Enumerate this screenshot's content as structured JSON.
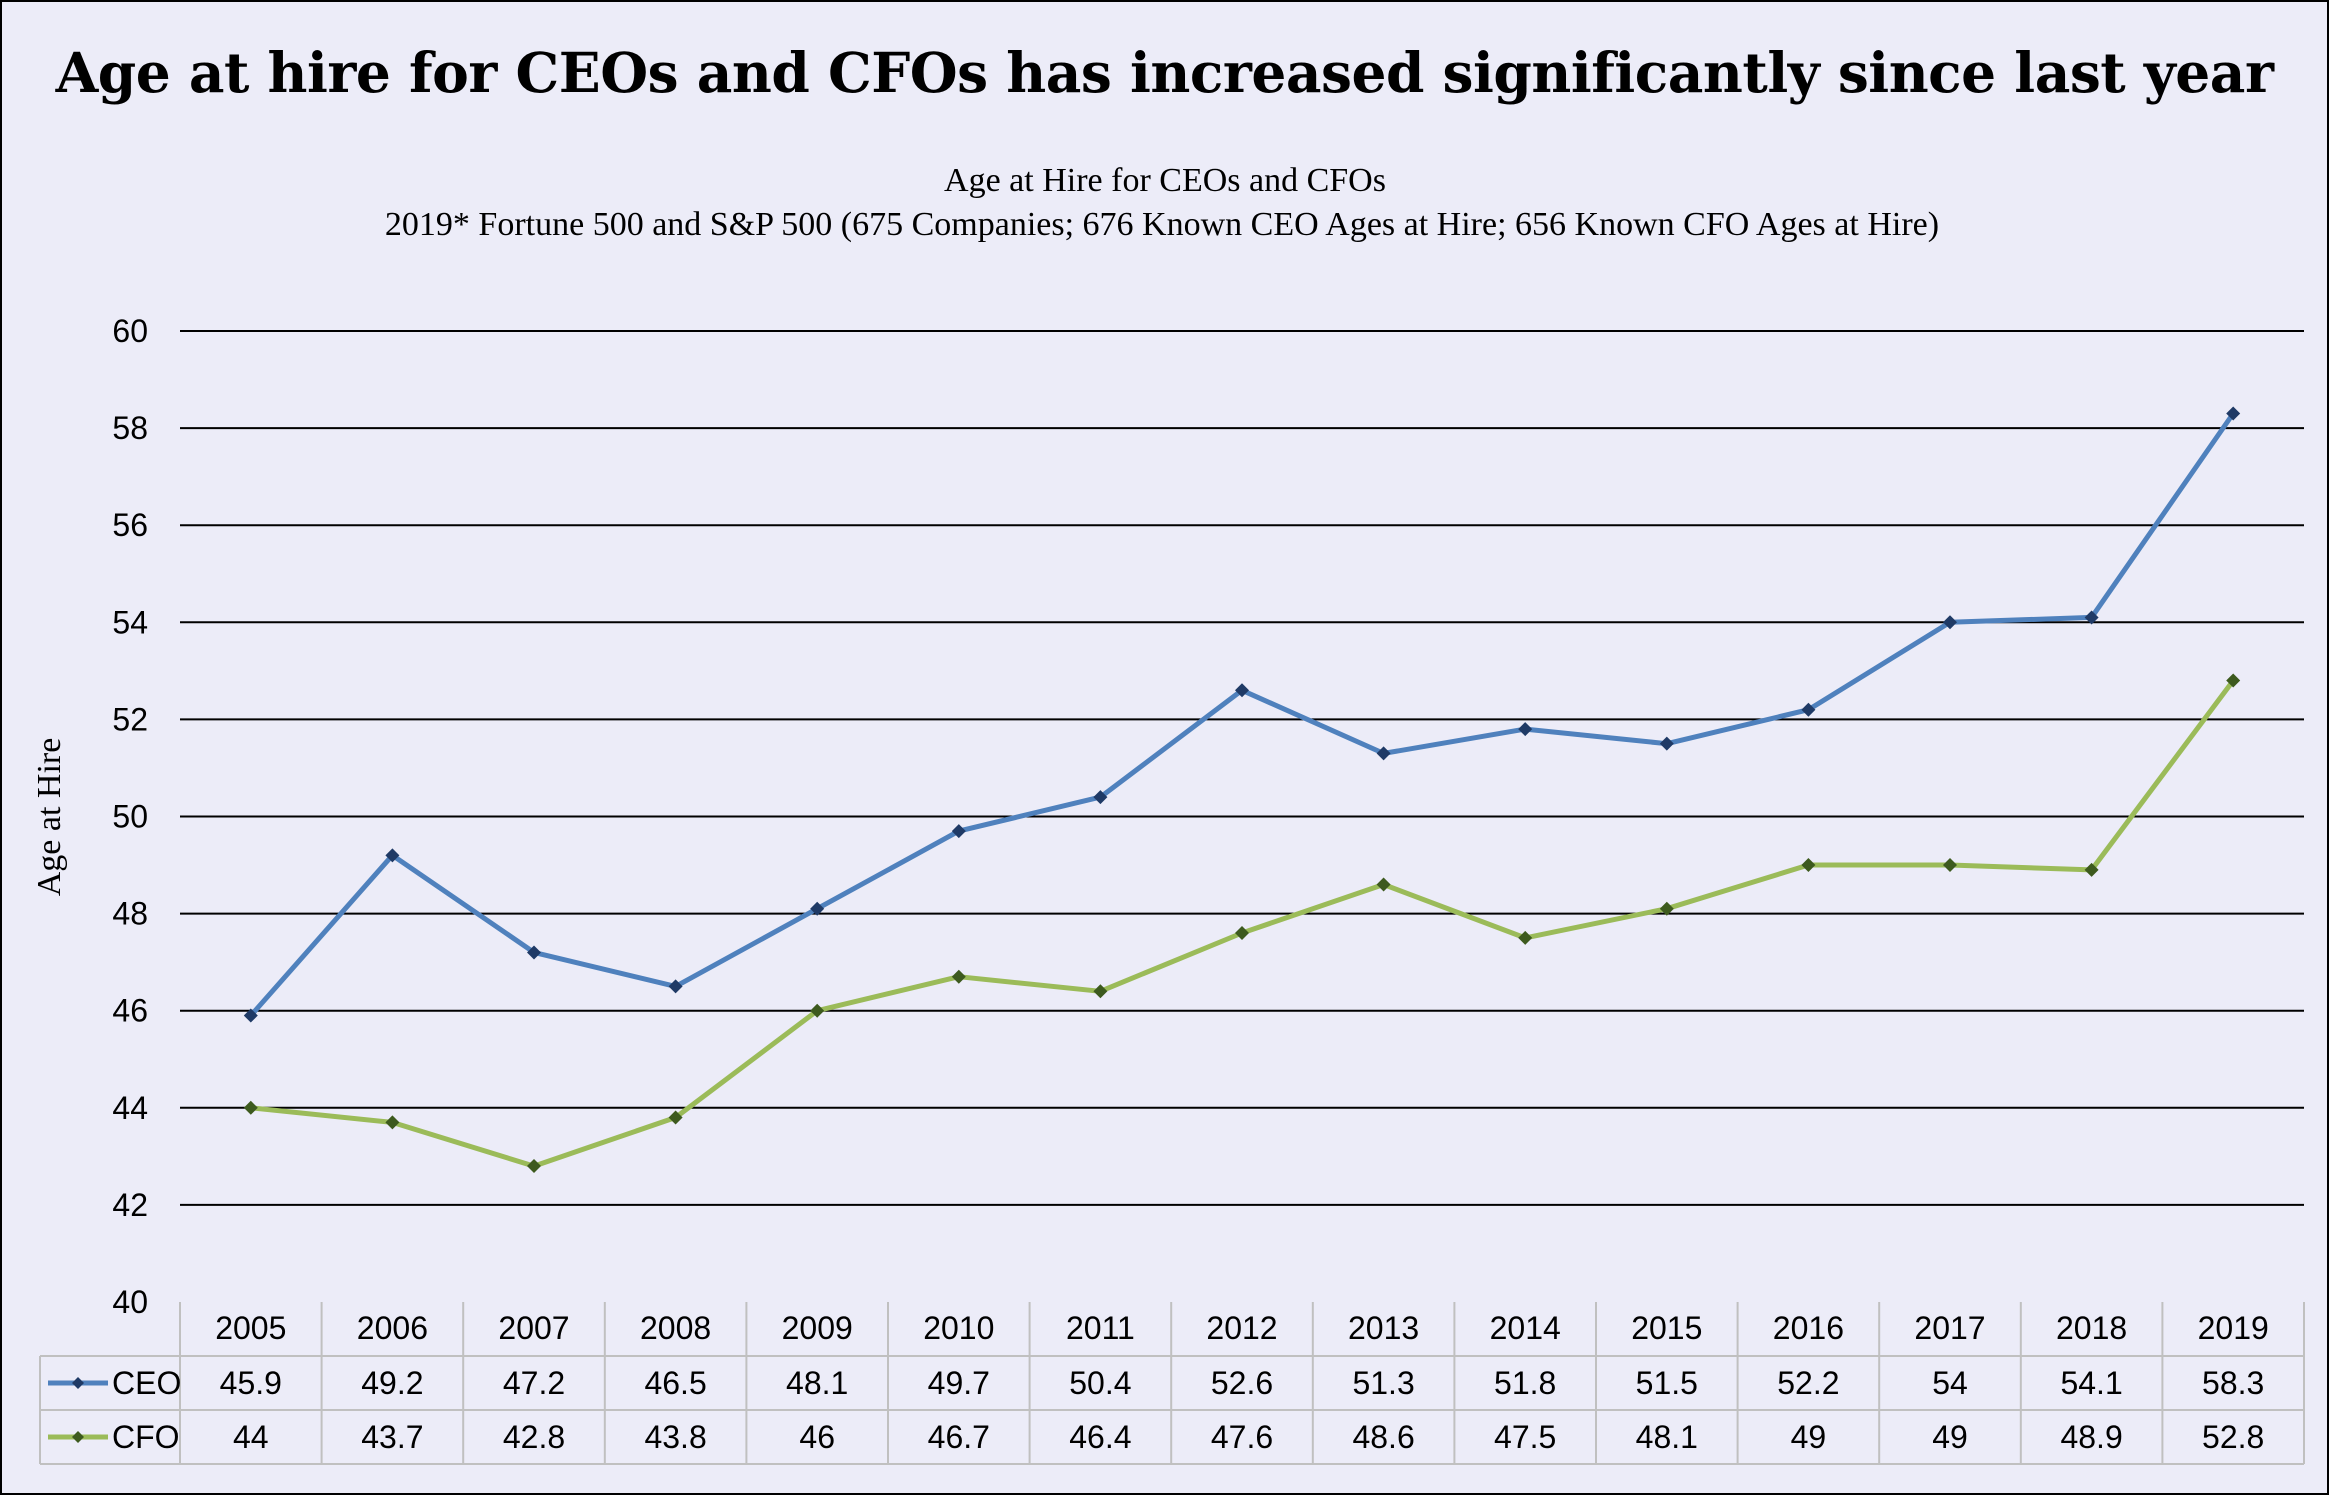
{
  "headline": "Age at hire for CEOs and CFOs has increased significantly since last year",
  "chart_data": {
    "type": "line",
    "title": "Age at Hire for CEOs and CFOs",
    "subtitle": "2019* Fortune 500 and S&P 500 (675 Companies; 676 Known CEO Ages at Hire; 656 Known CFO Ages at Hire)",
    "xlabel": "",
    "ylabel": "Age at Hire",
    "ylim": [
      40,
      60
    ],
    "yticks": [
      "40",
      "42",
      "44",
      "46",
      "48",
      "50",
      "52",
      "54",
      "56",
      "58",
      "60"
    ],
    "grid": true,
    "legend": "data-table",
    "categories": [
      "2005",
      "2006",
      "2007",
      "2008",
      "2009",
      "2010",
      "2011",
      "2012",
      "2013",
      "2014",
      "2015",
      "2016",
      "2017",
      "2018",
      "2019"
    ],
    "series": [
      {
        "name": "CEO",
        "color": "#4f81bd",
        "marker_color": "#1f3a66",
        "values": [
          45.9,
          49.2,
          47.2,
          46.5,
          48.1,
          49.7,
          50.4,
          52.6,
          51.3,
          51.8,
          51.5,
          52.2,
          54,
          54.1,
          58.3
        ],
        "labels": [
          "45.9",
          "49.2",
          "47.2",
          "46.5",
          "48.1",
          "49.7",
          "50.4",
          "52.6",
          "51.3",
          "51.8",
          "51.5",
          "52.2",
          "54",
          "54.1",
          "58.3"
        ]
      },
      {
        "name": "CFO",
        "color": "#9bbb59",
        "marker_color": "#3d5a1e",
        "values": [
          44,
          43.7,
          42.8,
          43.8,
          46,
          46.7,
          46.4,
          47.6,
          48.6,
          47.5,
          48.1,
          49,
          49,
          48.9,
          52.8
        ],
        "labels": [
          "44",
          "43.7",
          "42.8",
          "43.8",
          "46",
          "46.7",
          "46.4",
          "47.6",
          "48.6",
          "47.5",
          "48.1",
          "49",
          "49",
          "48.9",
          "52.8"
        ]
      }
    ]
  }
}
